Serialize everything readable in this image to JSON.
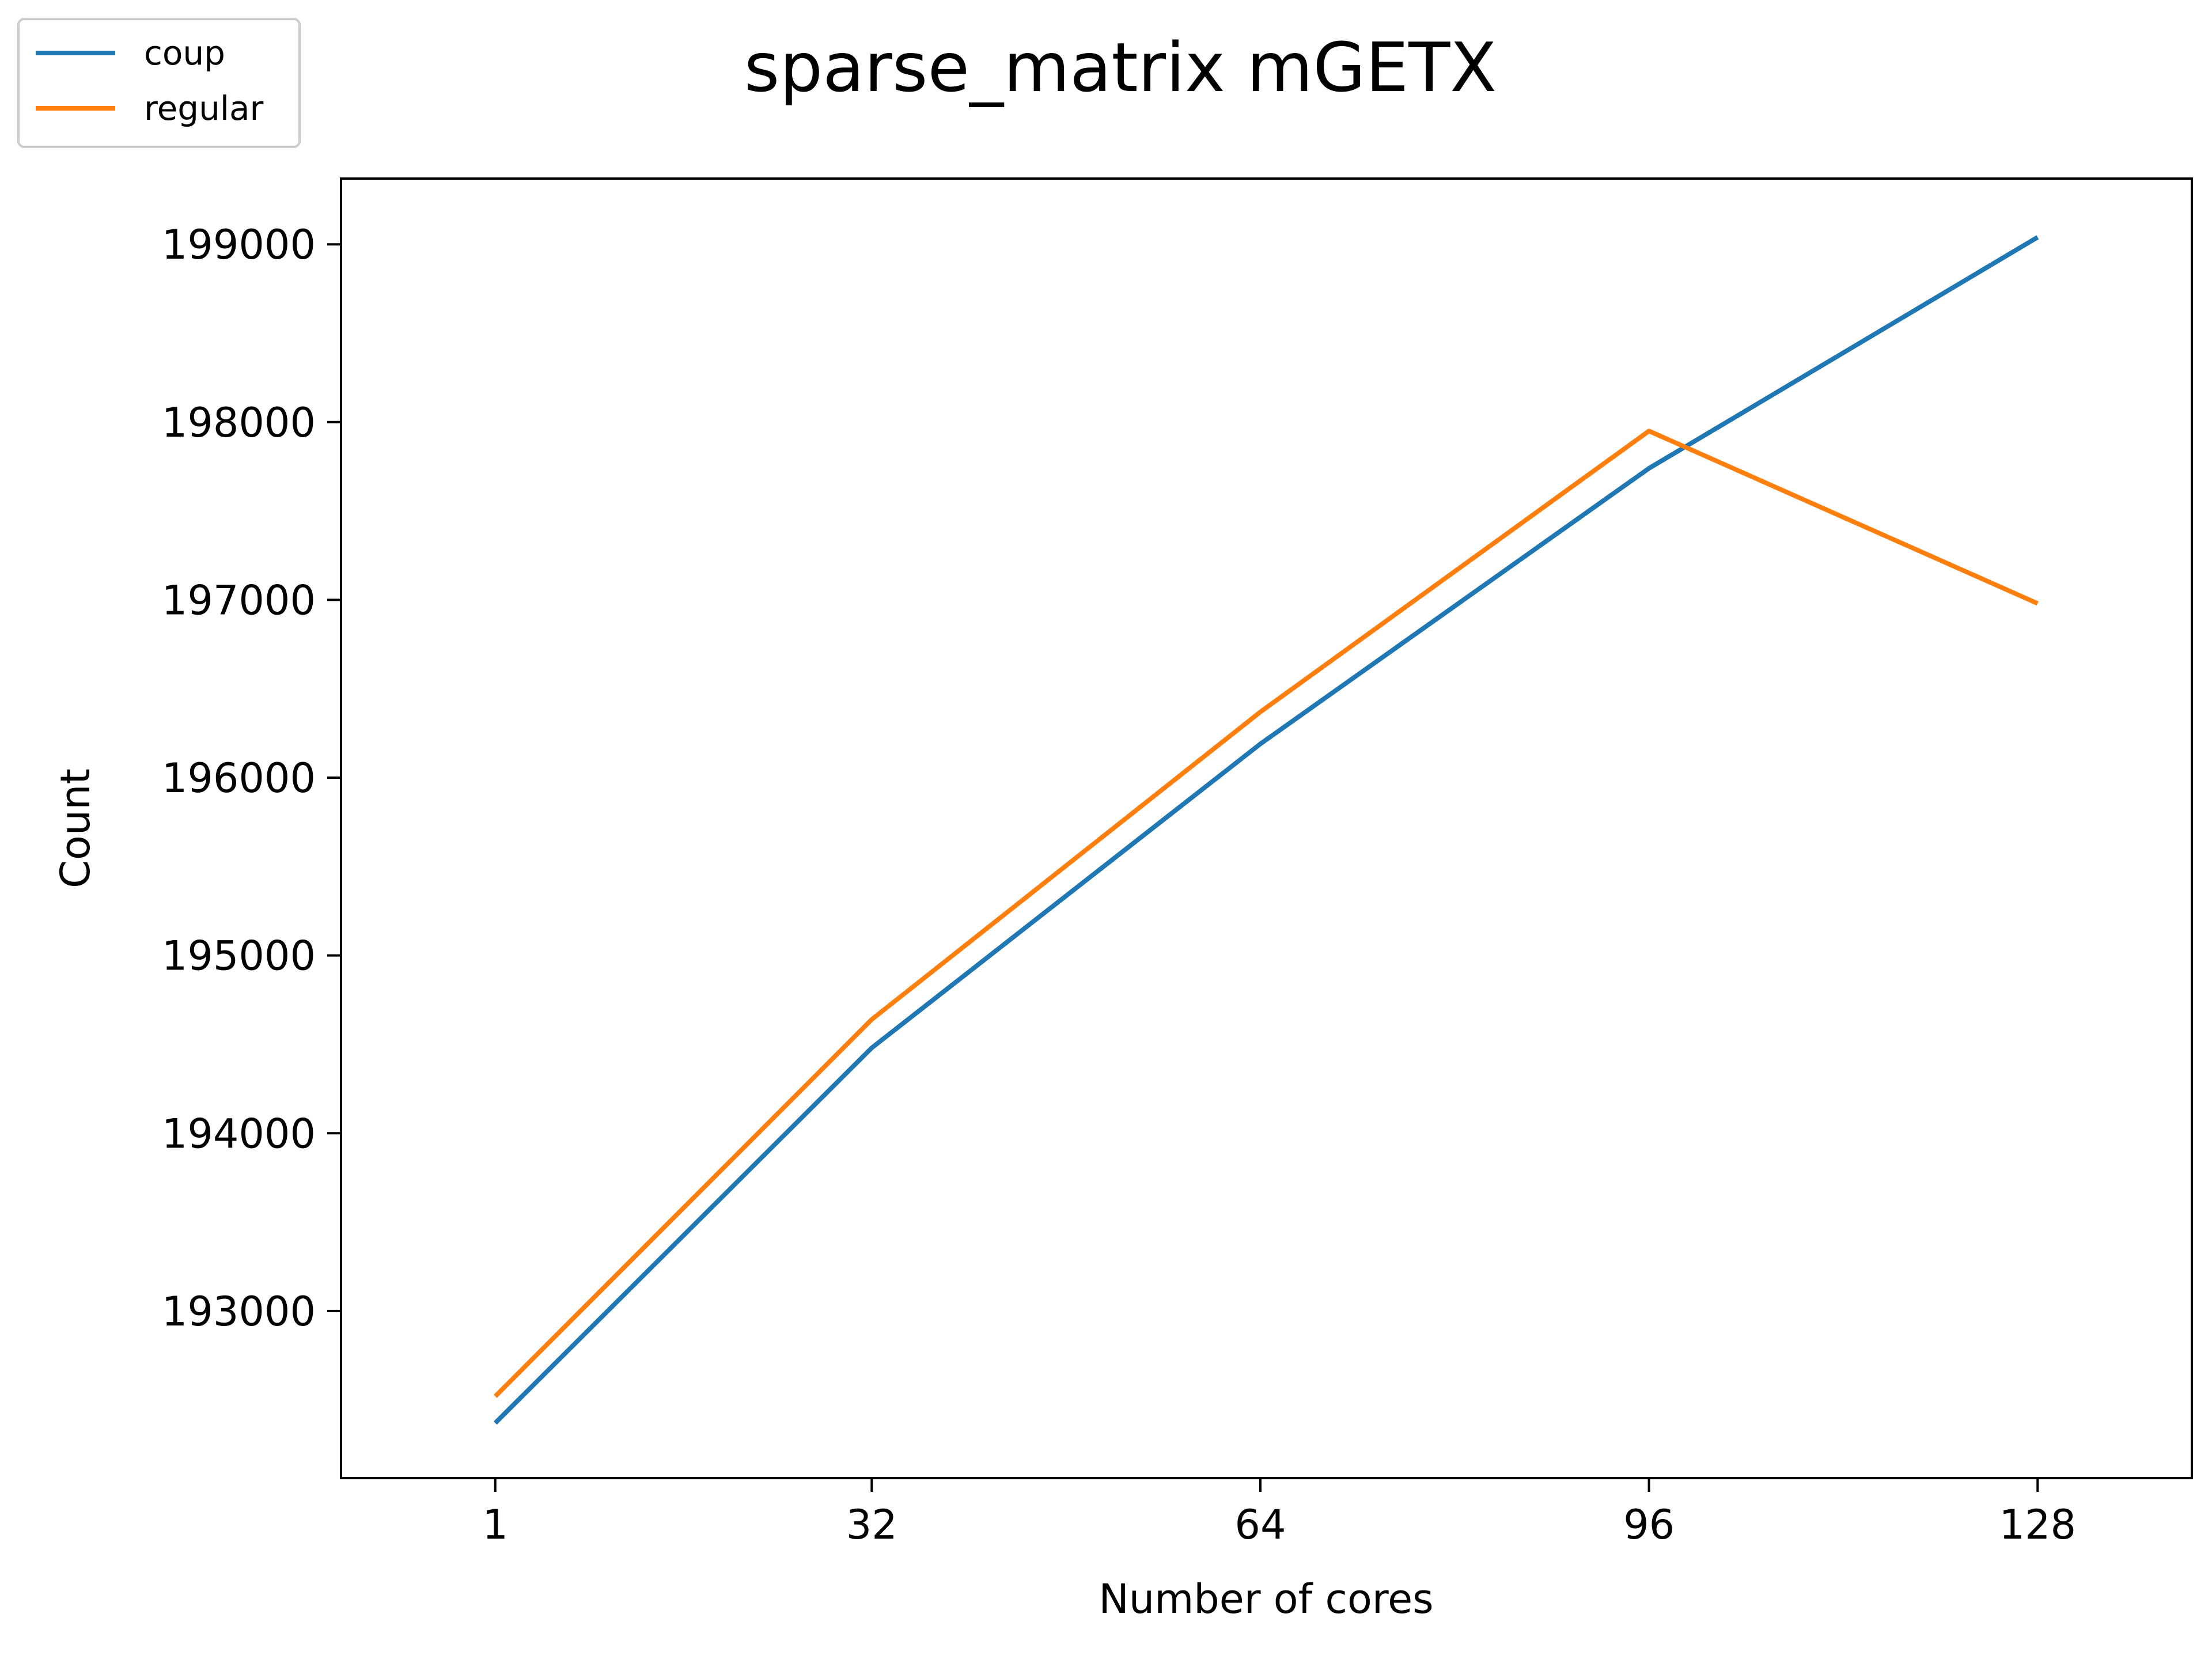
{
  "chart_data": {
    "type": "line",
    "title": "sparse_matrix mGETX",
    "xlabel": "Number of cores",
    "ylabel": "Count",
    "x": [
      1,
      32,
      64,
      96,
      128
    ],
    "x_tick_labels": [
      "1",
      "32",
      "64",
      "96",
      "128"
    ],
    "y_ticks": [
      193000,
      194000,
      195000,
      196000,
      197000,
      198000,
      199000
    ],
    "y_tick_labels": [
      "193000",
      "194000",
      "195000",
      "196000",
      "197000",
      "198000",
      "199000"
    ],
    "xlim": [
      -11.7,
      140.7
    ],
    "ylim": [
      192060,
      199370
    ],
    "grid": false,
    "legend_position": "top-left, outside plot",
    "series": [
      {
        "name": "coup",
        "color": "#1f77b4",
        "values": [
          192370,
          194480,
          196190,
          197740,
          199040
        ]
      },
      {
        "name": "regular",
        "color": "#ff7f0e",
        "values": [
          192520,
          194640,
          196370,
          197950,
          196980
        ]
      }
    ]
  }
}
